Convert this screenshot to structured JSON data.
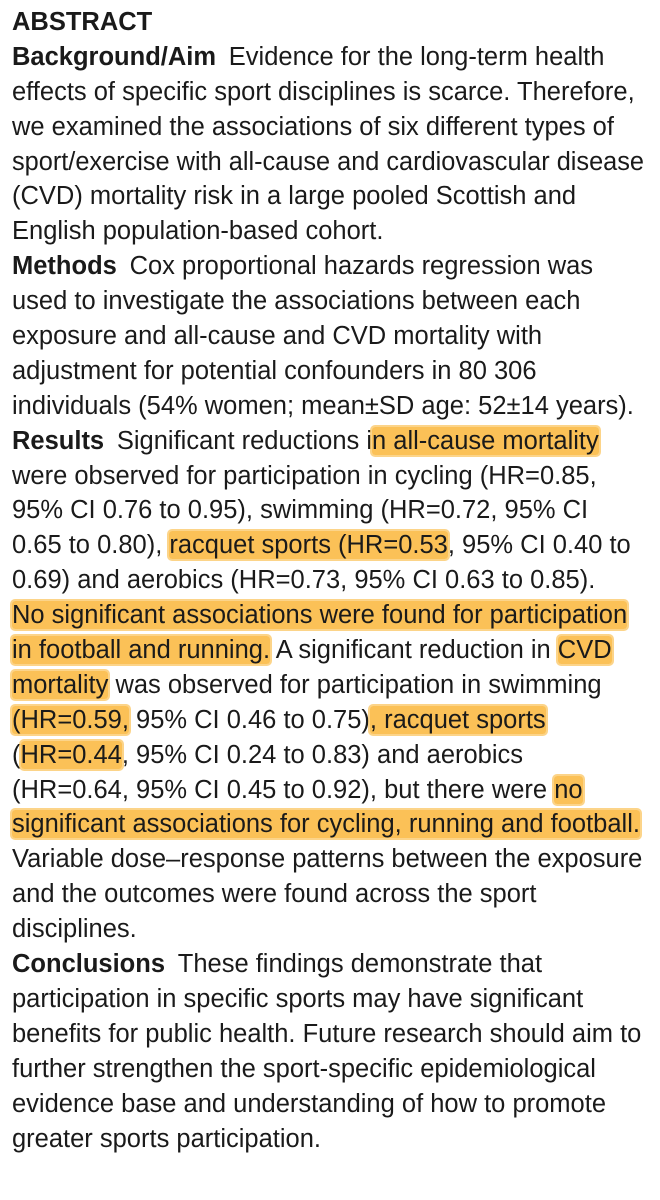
{
  "title": "ABSTRACT",
  "sections": [
    {
      "heading": "Background/Aim",
      "lines": [
        [
          {
            "text": "Evidence for the long-term health"
          }
        ],
        [
          {
            "text": "effects of specific sport disciplines is scarce. Therefore,"
          }
        ],
        [
          {
            "text": "we examined the associations of six different types of"
          }
        ],
        [
          {
            "text": "sport/exercise with all-cause and cardiovascular disease"
          }
        ],
        [
          {
            "text": "(CVD) mortality risk in a large pooled Scottish and"
          }
        ],
        [
          {
            "text": "English population-based cohort."
          }
        ]
      ]
    },
    {
      "heading": "Methods",
      "lines": [
        [
          {
            "text": "Cox proportional hazards regression was"
          }
        ],
        [
          {
            "text": "used to investigate the associations between each"
          }
        ],
        [
          {
            "text": "exposure and all-cause and CVD mortality with"
          }
        ],
        [
          {
            "text": "adjustment for potential confounders in 80 306"
          }
        ],
        [
          {
            "text": "individuals (54% women; mean±SD age: 52±14 years)."
          }
        ]
      ]
    },
    {
      "heading": "Results",
      "lines": [
        [
          {
            "text": "Significant reductions i"
          },
          {
            "text": "n all-cause mortality",
            "highlight": true
          }
        ],
        [
          {
            "text": "were observed for participation in cycling (HR=0.85,"
          }
        ],
        [
          {
            "text": "95% CI 0.76 to 0.95), swimming (HR=0.72, 95% CI"
          }
        ],
        [
          {
            "text": "0.65 to 0.80), "
          },
          {
            "text": "racquet sports (HR=0.53",
            "highlight": true
          },
          {
            "text": ", 95% CI 0.40 to"
          }
        ],
        [
          {
            "text": "0.69) and aerobics (HR=0.73, 95% CI 0.63 to 0.85)."
          }
        ],
        [
          {
            "text": "No significant associations were found for participation",
            "highlight": true
          }
        ],
        [
          {
            "text": "in football and running.",
            "highlight": true
          },
          {
            "text": " A significant reduction in "
          },
          {
            "text": "CVD",
            "highlight": true
          }
        ],
        [
          {
            "text": "mortality",
            "highlight": true
          },
          {
            "text": " was observed for participation in swimming"
          }
        ],
        [
          {
            "text": "(HR=0.59,",
            "highlight": true
          },
          {
            "text": " 95% CI 0.46 to 0.75)"
          },
          {
            "text": ", racquet sports",
            "highlight": true
          }
        ],
        [
          {
            "text": "("
          },
          {
            "text": "HR=0.44",
            "highlight": true
          },
          {
            "text": ", 95% CI 0.24 to 0.83) and aerobics"
          }
        ],
        [
          {
            "text": "(HR=0.64, 95% CI 0.45 to 0.92), but there were "
          },
          {
            "text": "no",
            "highlight": true
          }
        ],
        [
          {
            "text": "significant associations for cycling, running and football.",
            "highlight": true
          }
        ],
        [
          {
            "text": "Variable dose–response patterns between the exposure"
          }
        ],
        [
          {
            "text": "and the outcomes were found across the sport"
          }
        ],
        [
          {
            "text": "disciplines."
          }
        ]
      ]
    },
    {
      "heading": "Conclusions",
      "lines": [
        [
          {
            "text": "These findings demonstrate that"
          }
        ],
        [
          {
            "text": "participation in specific sports may have significant"
          }
        ],
        [
          {
            "text": "benefits for public health. Future research should aim to"
          }
        ],
        [
          {
            "text": "further strengthen the sport-specific epidemiological"
          }
        ],
        [
          {
            "text": "evidence base and understanding of how to promote"
          }
        ],
        [
          {
            "text": "greater sports participation."
          }
        ]
      ]
    }
  ]
}
